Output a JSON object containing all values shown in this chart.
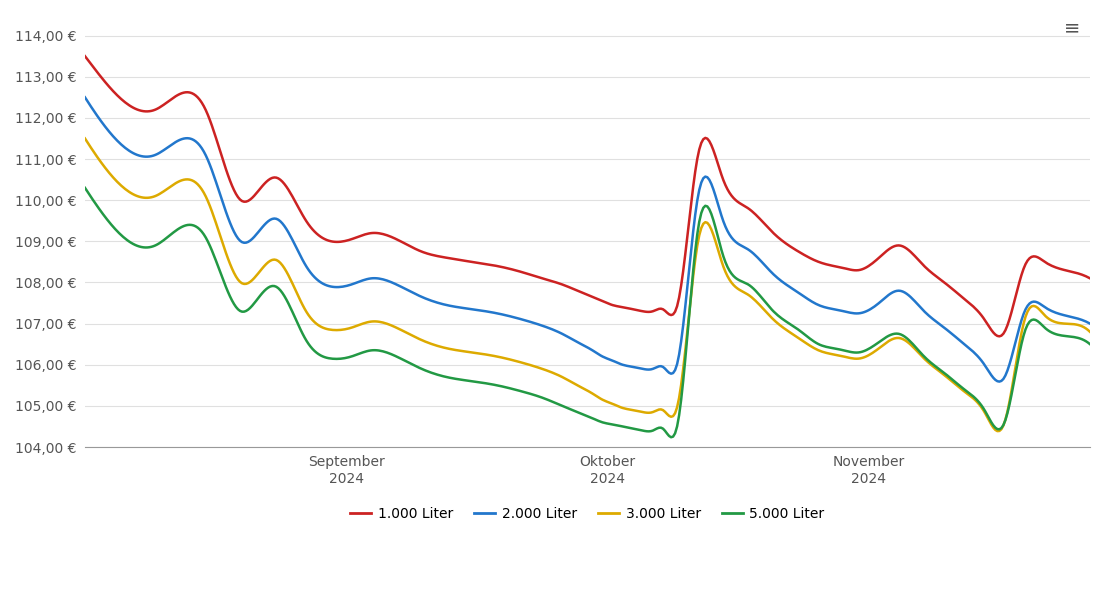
{
  "ylim": [
    104.0,
    114.5
  ],
  "yticks": [
    104.0,
    105.0,
    106.0,
    107.0,
    108.0,
    109.0,
    110.0,
    111.0,
    112.0,
    113.0,
    114.0
  ],
  "legend_labels": [
    "1.000 Liter",
    "2.000 Liter",
    "3.000 Liter",
    "5.000 Liter"
  ],
  "line_colors": [
    "#cc2222",
    "#2277cc",
    "#ddaa00",
    "#229944"
  ],
  "background_color": "#ffffff",
  "grid_color": "#e0e0e0",
  "x_tick_positions": [
    0.26,
    0.52,
    0.78
  ],
  "x_tick_labels": [
    "September\n2024",
    "Oktober\n2024",
    "November\n2024"
  ],
  "kp_x_1000": [
    0.0,
    0.03,
    0.07,
    0.12,
    0.155,
    0.175,
    0.19,
    0.22,
    0.245,
    0.265,
    0.285,
    0.31,
    0.335,
    0.36,
    0.385,
    0.41,
    0.435,
    0.455,
    0.475,
    0.49,
    0.505,
    0.515,
    0.525,
    0.535,
    0.545,
    0.555,
    0.565,
    0.575,
    0.59,
    0.61,
    0.635,
    0.66,
    0.685,
    0.71,
    0.73,
    0.745,
    0.755,
    0.77,
    0.79,
    0.81,
    0.835,
    0.855,
    0.875,
    0.895,
    0.915,
    0.935,
    0.955,
    0.975,
    1.0
  ],
  "kp_y_1000": [
    113.5,
    112.6,
    112.2,
    112.2,
    110.0,
    110.3,
    110.55,
    109.5,
    109.0,
    109.05,
    109.2,
    109.05,
    108.75,
    108.6,
    108.5,
    108.4,
    108.25,
    108.1,
    107.95,
    107.8,
    107.65,
    107.55,
    107.45,
    107.4,
    107.35,
    107.3,
    107.3,
    107.35,
    107.5,
    111.1,
    110.5,
    109.8,
    109.2,
    108.75,
    108.5,
    108.4,
    108.35,
    108.3,
    108.6,
    108.9,
    108.4,
    108.0,
    107.6,
    107.1,
    106.8,
    108.4,
    108.5,
    108.3,
    108.1
  ],
  "kp_x_2000": [
    0.0,
    0.03,
    0.07,
    0.12,
    0.155,
    0.175,
    0.19,
    0.22,
    0.245,
    0.265,
    0.285,
    0.31,
    0.335,
    0.36,
    0.385,
    0.41,
    0.435,
    0.455,
    0.475,
    0.49,
    0.505,
    0.515,
    0.525,
    0.535,
    0.545,
    0.555,
    0.565,
    0.575,
    0.59,
    0.61,
    0.635,
    0.66,
    0.685,
    0.71,
    0.73,
    0.745,
    0.755,
    0.77,
    0.79,
    0.81,
    0.835,
    0.855,
    0.875,
    0.895,
    0.915,
    0.935,
    0.955,
    0.975,
    1.0
  ],
  "kp_y_2000": [
    112.5,
    111.5,
    111.1,
    111.1,
    109.0,
    109.3,
    109.55,
    108.4,
    107.9,
    107.95,
    108.1,
    107.95,
    107.65,
    107.45,
    107.35,
    107.25,
    107.1,
    106.95,
    106.75,
    106.55,
    106.35,
    106.2,
    106.1,
    106.0,
    105.95,
    105.9,
    105.9,
    105.95,
    106.1,
    110.1,
    109.5,
    108.8,
    108.2,
    107.75,
    107.45,
    107.35,
    107.3,
    107.25,
    107.5,
    107.8,
    107.3,
    106.9,
    106.5,
    106.0,
    105.7,
    107.3,
    107.4,
    107.2,
    107.0
  ],
  "kp_x_3000": [
    0.0,
    0.03,
    0.07,
    0.12,
    0.155,
    0.175,
    0.19,
    0.22,
    0.245,
    0.265,
    0.285,
    0.31,
    0.335,
    0.36,
    0.385,
    0.41,
    0.435,
    0.455,
    0.475,
    0.49,
    0.505,
    0.515,
    0.525,
    0.535,
    0.545,
    0.555,
    0.565,
    0.575,
    0.59,
    0.61,
    0.635,
    0.66,
    0.685,
    0.71,
    0.73,
    0.745,
    0.755,
    0.77,
    0.79,
    0.81,
    0.835,
    0.855,
    0.875,
    0.895,
    0.915,
    0.935,
    0.955,
    0.975,
    1.0
  ],
  "kp_y_3000": [
    111.5,
    110.5,
    110.1,
    110.1,
    108.0,
    108.3,
    108.55,
    107.3,
    106.85,
    106.9,
    107.05,
    106.9,
    106.6,
    106.4,
    106.3,
    106.2,
    106.05,
    105.9,
    105.7,
    105.5,
    105.3,
    105.15,
    105.05,
    104.95,
    104.9,
    104.85,
    104.85,
    104.9,
    105.05,
    109.0,
    108.4,
    107.7,
    107.1,
    106.65,
    106.35,
    106.25,
    106.2,
    106.15,
    106.4,
    106.65,
    106.15,
    105.75,
    105.35,
    104.85,
    104.6,
    107.1,
    107.2,
    107.0,
    106.8
  ],
  "kp_x_5000": [
    0.0,
    0.03,
    0.07,
    0.12,
    0.155,
    0.175,
    0.19,
    0.22,
    0.245,
    0.265,
    0.285,
    0.31,
    0.335,
    0.36,
    0.385,
    0.41,
    0.435,
    0.455,
    0.475,
    0.49,
    0.505,
    0.515,
    0.525,
    0.535,
    0.545,
    0.555,
    0.565,
    0.575,
    0.59,
    0.61,
    0.635,
    0.66,
    0.685,
    0.71,
    0.73,
    0.745,
    0.755,
    0.77,
    0.79,
    0.81,
    0.835,
    0.855,
    0.875,
    0.895,
    0.915,
    0.935,
    0.955,
    0.975,
    1.0
  ],
  "kp_y_5000": [
    110.3,
    109.3,
    108.9,
    109.1,
    107.3,
    107.7,
    107.9,
    106.6,
    106.15,
    106.2,
    106.35,
    106.2,
    105.9,
    105.7,
    105.6,
    105.5,
    105.35,
    105.2,
    105.0,
    104.85,
    104.7,
    104.6,
    104.55,
    104.5,
    104.45,
    104.4,
    104.4,
    104.45,
    104.6,
    109.3,
    108.65,
    107.95,
    107.3,
    106.85,
    106.5,
    106.4,
    106.35,
    106.3,
    106.55,
    106.75,
    106.2,
    105.8,
    105.4,
    104.9,
    104.6,
    106.8,
    106.9,
    106.7,
    106.5
  ]
}
